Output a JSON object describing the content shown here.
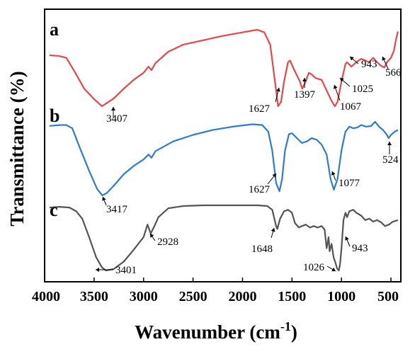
{
  "chart_data": {
    "type": "line",
    "xlabel": "Wavenumber (cm",
    "xlabel_sup": "-1",
    "xlabel_tail": ")",
    "ylabel": "Transmittance (%)",
    "xlim": [
      4000,
      400
    ],
    "x_reversed": true,
    "xticks": [
      "4000",
      "3500",
      "3000",
      "2500",
      "2000",
      "1500",
      "1000",
      "500"
    ],
    "grid": false,
    "series": [
      {
        "name": "a",
        "color": "#e8464a",
        "points": [
          [
            3950,
            58
          ],
          [
            3850,
            57
          ],
          [
            3780,
            55
          ],
          [
            3700,
            40
          ],
          [
            3600,
            20
          ],
          [
            3500,
            8
          ],
          [
            3420,
            0
          ],
          [
            3380,
            3
          ],
          [
            3300,
            9
          ],
          [
            3200,
            20
          ],
          [
            3100,
            30
          ],
          [
            3000,
            38
          ],
          [
            2950,
            45
          ],
          [
            2920,
            41
          ],
          [
            2880,
            49
          ],
          [
            2750,
            62
          ],
          [
            2600,
            70
          ],
          [
            2400,
            75
          ],
          [
            2200,
            80
          ],
          [
            2000,
            84
          ],
          [
            1850,
            87
          ],
          [
            1780,
            84
          ],
          [
            1720,
            70
          ],
          [
            1680,
            35
          ],
          [
            1640,
            0
          ],
          [
            1610,
            5
          ],
          [
            1580,
            28
          ],
          [
            1540,
            50
          ],
          [
            1520,
            52
          ],
          [
            1480,
            42
          ],
          [
            1420,
            28
          ],
          [
            1397,
            20
          ],
          [
            1370,
            26
          ],
          [
            1330,
            38
          ],
          [
            1300,
            36
          ],
          [
            1260,
            32
          ],
          [
            1200,
            30
          ],
          [
            1150,
            18
          ],
          [
            1100,
            6
          ],
          [
            1067,
            0
          ],
          [
            1040,
            5
          ],
          [
            1000,
            28
          ],
          [
            960,
            48
          ],
          [
            943,
            50
          ],
          [
            900,
            45
          ],
          [
            850,
            50
          ],
          [
            800,
            54
          ],
          [
            760,
            52
          ],
          [
            720,
            50
          ],
          [
            680,
            55
          ],
          [
            640,
            50
          ],
          [
            600,
            46
          ],
          [
            566,
            44
          ],
          [
            540,
            50
          ],
          [
            500,
            55
          ],
          [
            470,
            63
          ],
          [
            450,
            75
          ],
          [
            430,
            85
          ]
        ]
      },
      {
        "name": "b",
        "color": "#2e7bd6",
        "points": [
          [
            3950,
            85
          ],
          [
            3850,
            86
          ],
          [
            3780,
            86
          ],
          [
            3720,
            82
          ],
          [
            3650,
            60
          ],
          [
            3550,
            30
          ],
          [
            3470,
            8
          ],
          [
            3417,
            0
          ],
          [
            3370,
            3
          ],
          [
            3300,
            12
          ],
          [
            3200,
            26
          ],
          [
            3100,
            36
          ],
          [
            3000,
            44
          ],
          [
            2950,
            50
          ],
          [
            2920,
            46
          ],
          [
            2880,
            54
          ],
          [
            2700,
            66
          ],
          [
            2500,
            74
          ],
          [
            2300,
            80
          ],
          [
            2100,
            84
          ],
          [
            1900,
            87
          ],
          [
            1800,
            86
          ],
          [
            1740,
            78
          ],
          [
            1700,
            55
          ],
          [
            1660,
            15
          ],
          [
            1627,
            5
          ],
          [
            1600,
            20
          ],
          [
            1570,
            55
          ],
          [
            1530,
            75
          ],
          [
            1500,
            76
          ],
          [
            1450,
            70
          ],
          [
            1400,
            64
          ],
          [
            1350,
            66
          ],
          [
            1300,
            70
          ],
          [
            1250,
            68
          ],
          [
            1200,
            62
          ],
          [
            1150,
            50
          ],
          [
            1110,
            20
          ],
          [
            1077,
            7
          ],
          [
            1040,
            20
          ],
          [
            1000,
            55
          ],
          [
            960,
            78
          ],
          [
            920,
            84
          ],
          [
            880,
            82
          ],
          [
            840,
            83
          ],
          [
            800,
            86
          ],
          [
            750,
            84
          ],
          [
            700,
            85
          ],
          [
            660,
            90
          ],
          [
            620,
            84
          ],
          [
            580,
            80
          ],
          [
            540,
            74
          ],
          [
            524,
            70
          ],
          [
            500,
            74
          ],
          [
            460,
            78
          ],
          [
            430,
            80
          ]
        ]
      },
      {
        "name": "c",
        "color": "#545454",
        "points": [
          [
            3950,
            85
          ],
          [
            3850,
            86
          ],
          [
            3750,
            85
          ],
          [
            3680,
            80
          ],
          [
            3620,
            70
          ],
          [
            3550,
            45
          ],
          [
            3480,
            18
          ],
          [
            3420,
            4
          ],
          [
            3380,
            0
          ],
          [
            3300,
            2
          ],
          [
            3200,
            12
          ],
          [
            3100,
            28
          ],
          [
            3000,
            45
          ],
          [
            2960,
            62
          ],
          [
            2928,
            50
          ],
          [
            2890,
            60
          ],
          [
            2850,
            72
          ],
          [
            2750,
            84
          ],
          [
            2600,
            87
          ],
          [
            2400,
            88
          ],
          [
            2200,
            88
          ],
          [
            2000,
            88
          ],
          [
            1850,
            88
          ],
          [
            1750,
            87
          ],
          [
            1700,
            82
          ],
          [
            1660,
            60
          ],
          [
            1648,
            56
          ],
          [
            1620,
            70
          ],
          [
            1580,
            80
          ],
          [
            1540,
            82
          ],
          [
            1500,
            78
          ],
          [
            1470,
            64
          ],
          [
            1430,
            58
          ],
          [
            1400,
            60
          ],
          [
            1360,
            62
          ],
          [
            1320,
            58
          ],
          [
            1280,
            60
          ],
          [
            1240,
            58
          ],
          [
            1200,
            60
          ],
          [
            1170,
            55
          ],
          [
            1150,
            30
          ],
          [
            1130,
            45
          ],
          [
            1120,
            26
          ],
          [
            1100,
            36
          ],
          [
            1080,
            18
          ],
          [
            1060,
            10
          ],
          [
            1045,
            3
          ],
          [
            1026,
            0
          ],
          [
            1015,
            8
          ],
          [
            1000,
            30
          ],
          [
            980,
            68
          ],
          [
            960,
            78
          ],
          [
            943,
            72
          ],
          [
            920,
            80
          ],
          [
            880,
            82
          ],
          [
            850,
            78
          ],
          [
            800,
            74
          ],
          [
            760,
            68
          ],
          [
            720,
            70
          ],
          [
            680,
            66
          ],
          [
            640,
            68
          ],
          [
            600,
            65
          ],
          [
            560,
            60
          ],
          [
            520,
            62
          ],
          [
            480,
            66
          ],
          [
            430,
            68
          ]
        ]
      }
    ],
    "series_labels": [
      "a",
      "b",
      "c"
    ],
    "annotations": [
      {
        "series": "a",
        "text": "3407",
        "x": 3407
      },
      {
        "series": "a",
        "text": "1627",
        "x": 1627
      },
      {
        "series": "a",
        "text": "1397",
        "x": 1397
      },
      {
        "series": "a",
        "text": "1067",
        "x": 1067
      },
      {
        "series": "a",
        "text": "1025",
        "x": 1025
      },
      {
        "series": "a",
        "text": "943",
        "x": 943
      },
      {
        "series": "a",
        "text": "566",
        "x": 566
      },
      {
        "series": "b",
        "text": "3417",
        "x": 3417
      },
      {
        "series": "b",
        "text": "1627",
        "x": 1627
      },
      {
        "series": "b",
        "text": "1077",
        "x": 1077
      },
      {
        "series": "b",
        "text": "524",
        "x": 524
      },
      {
        "series": "c",
        "text": "3401",
        "x": 3401
      },
      {
        "series": "c",
        "text": "2928",
        "x": 2928
      },
      {
        "series": "c",
        "text": "1648",
        "x": 1648
      },
      {
        "series": "c",
        "text": "1026",
        "x": 1026
      },
      {
        "series": "c",
        "text": "943",
        "x": 943
      }
    ]
  }
}
